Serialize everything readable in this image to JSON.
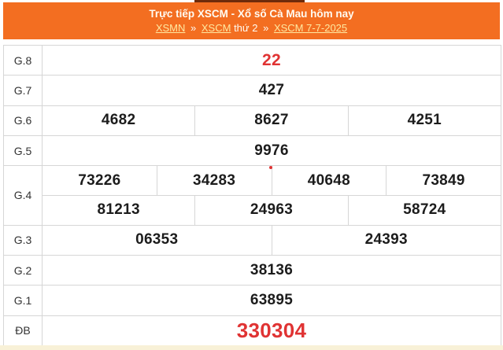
{
  "colors": {
    "accent-orange": "#F36E21",
    "result-red": "#E03333",
    "link-yellow": "#FFE9A1",
    "header-text": "#FFFBF2",
    "number-black": "#1C1C1C",
    "label-gray": "#333333",
    "border-gray": "#D6D6D6",
    "bottom-strip": "#F8F1D7",
    "clipped-bar": "#6E2B0B"
  },
  "header": {
    "title": "Trực tiếp XSCM - Xổ số Cà Mau hôm nay",
    "breadcrumb": {
      "xsmn": "XSMN",
      "sep1": "»",
      "xscm": "XSCM",
      "weekday": "thứ 2",
      "sep2": "»",
      "date_link": "XSCM 7-7-2025"
    }
  },
  "results": {
    "rows": [
      {
        "label": "G.8",
        "cells": [
          "22"
        ]
      },
      {
        "label": "G.7",
        "cells": [
          "427"
        ]
      },
      {
        "label": "G.6",
        "cells": [
          "4682",
          "8627",
          "4251"
        ]
      },
      {
        "label": "G.5",
        "cells": [
          "9976"
        ]
      },
      {
        "label": "G.4",
        "cells_top": [
          "73226",
          "34283",
          "40648",
          "73849"
        ],
        "cells_bottom": [
          "81213",
          "24963",
          "58724"
        ]
      },
      {
        "label": "G.3",
        "cells": [
          "06353",
          "24393"
        ]
      },
      {
        "label": "G.2",
        "cells": [
          "38136"
        ]
      },
      {
        "label": "G.1",
        "cells": [
          "63895"
        ]
      },
      {
        "label": "ĐB",
        "cells": [
          "330304"
        ]
      }
    ]
  }
}
